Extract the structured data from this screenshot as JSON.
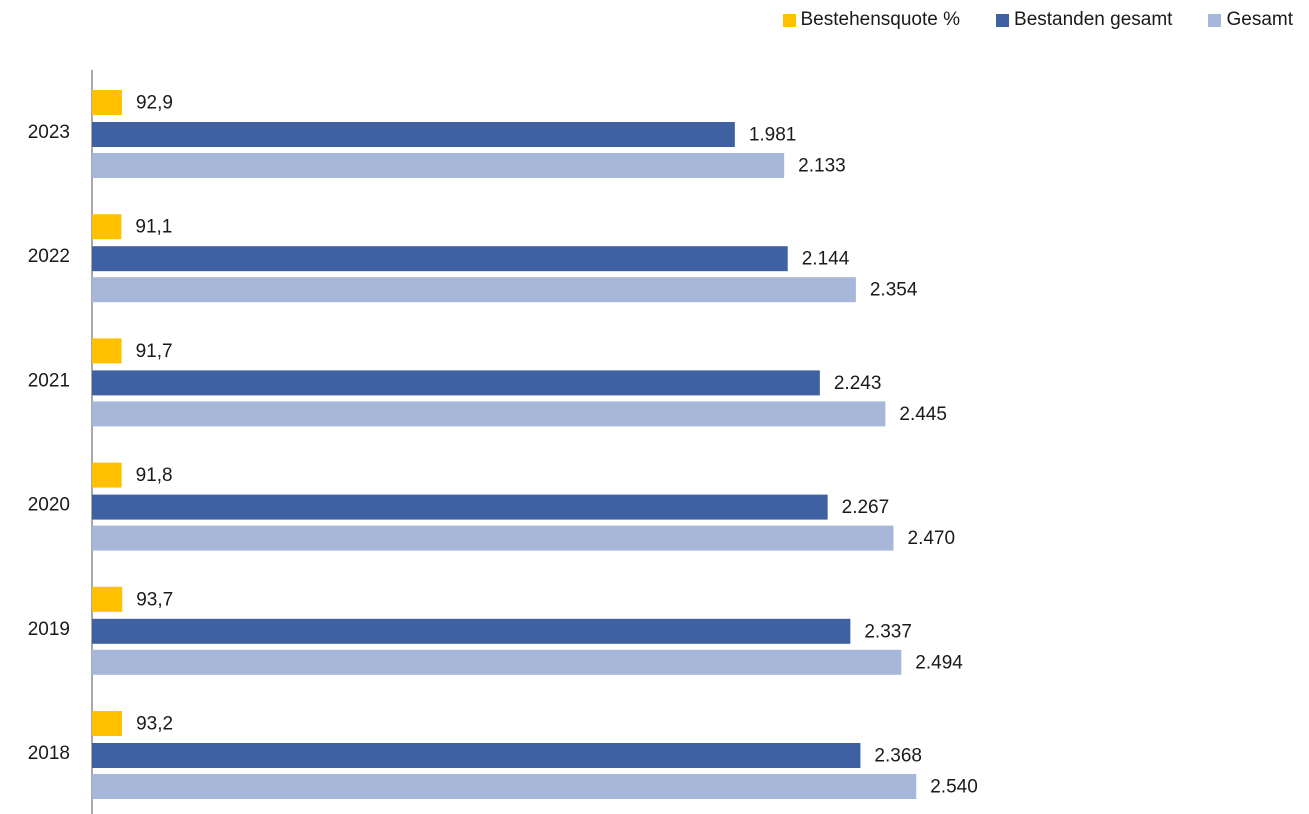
{
  "chart_data": {
    "type": "bar",
    "orientation": "horizontal",
    "title": "",
    "xlabel": "",
    "ylabel": "",
    "categories": [
      "2023",
      "2022",
      "2021",
      "2020",
      "2019",
      "2018"
    ],
    "series": [
      {
        "name": "Bestehensquote %",
        "color": "#FFC000",
        "values": [
          92.9,
          91.1,
          91.7,
          91.8,
          93.7,
          93.2
        ],
        "labels": [
          "92,9",
          "91,1",
          "91,7",
          "91,8",
          "93,7",
          "93,2"
        ]
      },
      {
        "name": "Bestanden gesamt",
        "color": "#3F61A1",
        "values": [
          1981,
          2144,
          2243,
          2267,
          2337,
          2368
        ],
        "labels": [
          "1.981",
          "2.144",
          "2.243",
          "2.267",
          "2.337",
          "2.368"
        ]
      },
      {
        "name": "Gesamt",
        "color": "#A6B7DA",
        "values": [
          2133,
          2354,
          2445,
          2470,
          2494,
          2540
        ],
        "labels": [
          "2.133",
          "2.354",
          "2.445",
          "2.470",
          "2.494",
          "2.540"
        ]
      }
    ],
    "xlim": [
      0,
      3000
    ],
    "grid": false,
    "legend": "top-right"
  }
}
